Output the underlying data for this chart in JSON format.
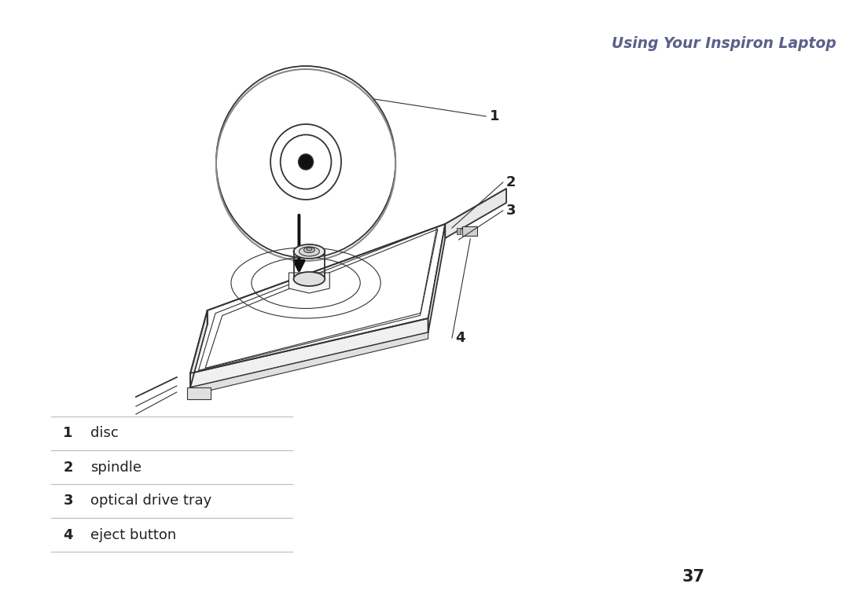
{
  "title": "Using Your Inspiron Laptop",
  "title_color": "#5c5f8a",
  "title_fontsize": 13.5,
  "background_color": "#ffffff",
  "labels": [
    {
      "num": "1",
      "text": "disc"
    },
    {
      "num": "2",
      "text": "spindle"
    },
    {
      "num": "3",
      "text": "optical drive tray"
    },
    {
      "num": "4",
      "text": "eject button"
    }
  ],
  "page_number": "37",
  "line_color": "#333333",
  "lw_main": 1.3,
  "lw_thin": 0.8
}
